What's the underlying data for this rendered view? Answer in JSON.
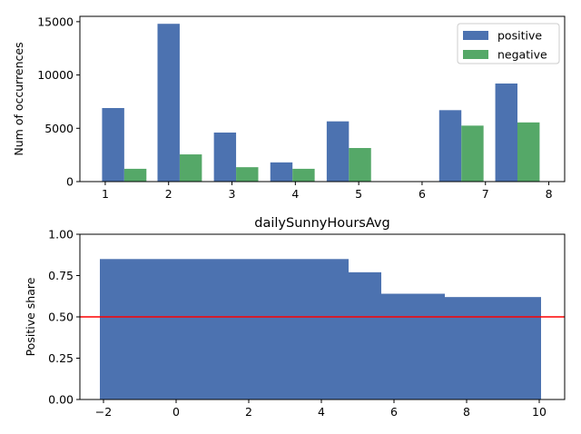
{
  "chart_data": [
    {
      "type": "bar",
      "title": "",
      "xlabel": "",
      "ylabel": "Num of occurrences",
      "xlim": [
        0.6,
        8.25
      ],
      "ylim": [
        0,
        15500
      ],
      "x_ticks": [
        1,
        2,
        3,
        4,
        5,
        6,
        7,
        8
      ],
      "y_ticks": [
        0,
        5000,
        10000,
        15000
      ],
      "legend": "top-right",
      "grid": false,
      "bar_width": 0.35,
      "series": [
        {
          "name": "positive",
          "color": "#4c72b0",
          "x": [
            1.125,
            2.0,
            2.89,
            3.78,
            4.67,
            5.56,
            6.445,
            7.33
          ],
          "values": [
            6900,
            14800,
            4600,
            1800,
            5650,
            0,
            6700,
            9200
          ]
        },
        {
          "name": "negative",
          "color": "#55a868",
          "x": [
            1.475,
            2.35,
            3.24,
            4.13,
            5.02,
            5.91,
            6.795,
            7.68
          ],
          "values": [
            1200,
            2550,
            1350,
            1200,
            3150,
            0,
            5250,
            5550
          ]
        }
      ]
    },
    {
      "type": "bar",
      "title": "dailySunnyHoursAvg",
      "xlabel": "",
      "ylabel": "Positive share",
      "xlim": [
        -2.65,
        10.7
      ],
      "ylim": [
        0,
        1
      ],
      "x_ticks": [
        -2,
        0,
        2,
        4,
        6,
        8,
        10
      ],
      "y_ticks": [
        "0.00",
        "0.25",
        "0.50",
        "0.75",
        "1.00"
      ],
      "grid": false,
      "color": "#4c72b0",
      "bins": [
        {
          "from": -2.1,
          "to": 4.75,
          "value": 0.85
        },
        {
          "from": 4.75,
          "to": 5.65,
          "value": 0.77
        },
        {
          "from": 5.65,
          "to": 7.4,
          "value": 0.64
        },
        {
          "from": 7.4,
          "to": 10.05,
          "value": 0.62
        }
      ],
      "reference_line": {
        "y": 0.5,
        "color": "#ff0000"
      }
    }
  ]
}
